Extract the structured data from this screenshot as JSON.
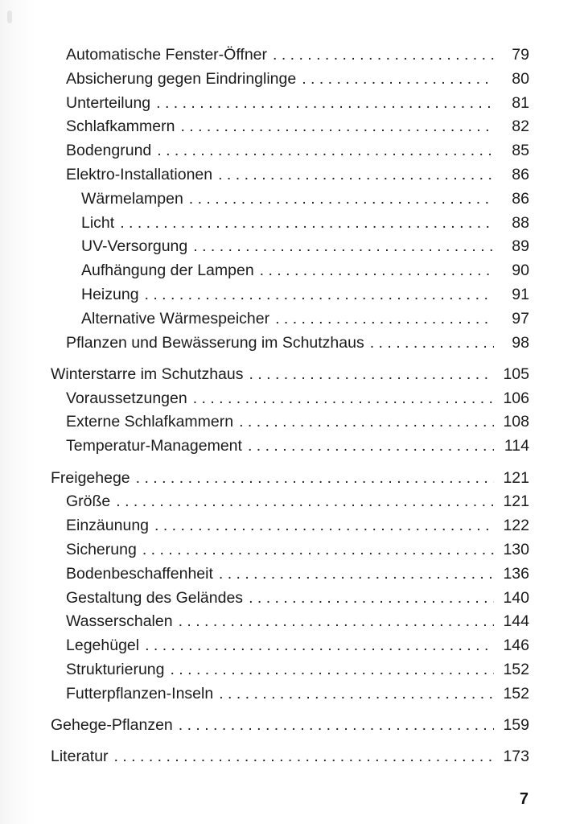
{
  "page": {
    "background": "#ffffff",
    "text_color": "#1b1b1b"
  },
  "toc": {
    "groups": [
      {
        "entries": [
          {
            "level": 2,
            "title": "Automatische Fenster-Öffner",
            "page": "79"
          },
          {
            "level": 2,
            "title": "Absicherung gegen Eindringlinge",
            "page": "80"
          },
          {
            "level": 2,
            "title": "Unterteilung",
            "page": "81"
          },
          {
            "level": 2,
            "title": "Schlafkammern",
            "page": "82"
          },
          {
            "level": 2,
            "title": "Bodengrund",
            "page": "85"
          },
          {
            "level": 2,
            "title": "Elektro-Installationen",
            "page": "86"
          },
          {
            "level": 3,
            "title": "Wärmelampen",
            "page": "86"
          },
          {
            "level": 3,
            "title": "Licht",
            "page": "88"
          },
          {
            "level": 3,
            "title": "UV-Versorgung",
            "page": "89"
          },
          {
            "level": 3,
            "title": "Aufhängung der Lampen",
            "page": "90"
          },
          {
            "level": 3,
            "title": "Heizung",
            "page": "91"
          },
          {
            "level": 3,
            "title": "Alternative Wärmespeicher",
            "page": "97"
          },
          {
            "level": 2,
            "title": "Pflanzen und Bewässerung im Schutzhaus",
            "page": "98"
          }
        ]
      },
      {
        "entries": [
          {
            "level": 1,
            "title": "Winterstarre im Schutzhaus",
            "page": "105"
          },
          {
            "level": 2,
            "title": "Voraussetzungen",
            "page": "106"
          },
          {
            "level": 2,
            "title": "Externe Schlafkammern",
            "page": "108"
          },
          {
            "level": 2,
            "title": "Temperatur-Management",
            "page": "114"
          }
        ]
      },
      {
        "entries": [
          {
            "level": 1,
            "title": "Freigehege",
            "page": "121"
          },
          {
            "level": 2,
            "title": "Größe",
            "page": "121"
          },
          {
            "level": 2,
            "title": "Einzäunung",
            "page": "122"
          },
          {
            "level": 2,
            "title": "Sicherung",
            "page": "130"
          },
          {
            "level": 2,
            "title": "Bodenbeschaffenheit",
            "page": "136"
          },
          {
            "level": 2,
            "title": "Gestaltung des Geländes",
            "page": "140"
          },
          {
            "level": 2,
            "title": "Wasserschalen",
            "page": "144"
          },
          {
            "level": 2,
            "title": "Legehügel",
            "page": "146"
          },
          {
            "level": 2,
            "title": "Strukturierung",
            "page": "152"
          },
          {
            "level": 2,
            "title": "Futterpflanzen-Inseln",
            "page": "152"
          }
        ]
      },
      {
        "entries": [
          {
            "level": 1,
            "title": "Gehege-Pflanzen",
            "page": "159"
          }
        ]
      },
      {
        "entries": [
          {
            "level": 1,
            "title": "Literatur",
            "page": "173"
          }
        ]
      }
    ]
  },
  "footer": {
    "page_number": "7"
  }
}
